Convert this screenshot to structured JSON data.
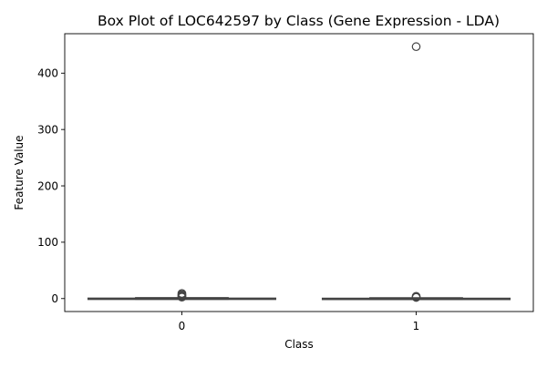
{
  "chart_data": {
    "type": "box",
    "title": "Box Plot of LOC642597 by Class (Gene Expression - LDA)",
    "xlabel": "Class",
    "ylabel": "Feature Value",
    "categories": [
      "0",
      "1"
    ],
    "ylim": [
      -23,
      470
    ],
    "yticks": [
      0,
      100,
      200,
      300,
      400
    ],
    "ytick_labels": [
      "0",
      "100",
      "200",
      "300",
      "400"
    ],
    "grid": false,
    "legend": "none",
    "box_color": "#444444",
    "boxes": [
      {
        "category": "0",
        "whisker_low": -1,
        "q1": -0.8,
        "median": -0.3,
        "q3": 0.6,
        "whisker_high": 1.4,
        "outliers": [
          2.5,
          3.5,
          5,
          7,
          9
        ]
      },
      {
        "category": "1",
        "whisker_low": -1,
        "q1": -0.8,
        "median": -0.4,
        "q3": 0.4,
        "whisker_high": 1.2,
        "outliers": [
          2,
          3,
          4,
          447
        ]
      }
    ]
  }
}
